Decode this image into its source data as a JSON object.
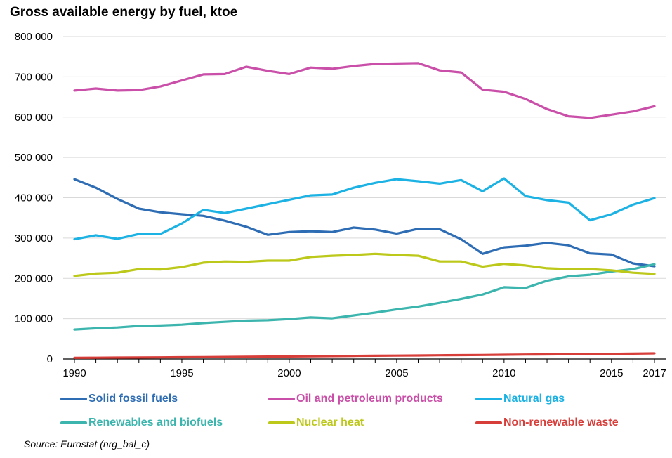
{
  "chart_data": {
    "type": "line",
    "title": "Gross available energy by fuel, ktoe",
    "xlabel": "",
    "ylabel": "",
    "ylim": [
      0,
      800000
    ],
    "yticks": [
      0,
      100000,
      200000,
      300000,
      400000,
      500000,
      600000,
      700000,
      800000
    ],
    "ytick_labels": [
      "0",
      "100 000",
      "200 000",
      "300 000",
      "400 000",
      "500 000",
      "600 000",
      "700 000",
      "800 000"
    ],
    "xlim": [
      1990,
      2017
    ],
    "xticks": [
      1990,
      1995,
      2000,
      2005,
      2010,
      2015,
      2017
    ],
    "xtick_labels": [
      "1990",
      "1995",
      "2000",
      "2005",
      "2010",
      "2015",
      "2017"
    ],
    "grid": "horizontal",
    "legend_position": "bottom",
    "x": [
      1990,
      1991,
      1992,
      1993,
      1994,
      1995,
      1996,
      1997,
      1998,
      1999,
      2000,
      2001,
      2002,
      2003,
      2004,
      2005,
      2006,
      2007,
      2008,
      2009,
      2010,
      2011,
      2012,
      2013,
      2014,
      2015,
      2016,
      2017
    ],
    "series": [
      {
        "name": "Solid fossil fuels",
        "color": "#2e6db4",
        "values": [
          446000,
          425000,
          397000,
          373000,
          364000,
          359000,
          355000,
          343000,
          328000,
          308000,
          315000,
          317000,
          315000,
          326000,
          321000,
          311000,
          323000,
          322000,
          297000,
          261000,
          277000,
          281000,
          288000,
          282000,
          262000,
          259000,
          237000,
          230000
        ]
      },
      {
        "name": "Oil and petroleum products",
        "color": "#c94fa8",
        "values": [
          666000,
          671000,
          666000,
          667000,
          676000,
          691000,
          706000,
          707000,
          725000,
          715000,
          707000,
          723000,
          720000,
          727000,
          732000,
          733000,
          734000,
          716000,
          711000,
          668000,
          663000,
          645000,
          620000,
          602000,
          598000,
          606000,
          614000,
          627000
        ]
      },
      {
        "name": "Natural gas",
        "color": "#1cb2e3",
        "values": [
          297000,
          307000,
          298000,
          310000,
          310000,
          336000,
          370000,
          362000,
          373000,
          384000,
          395000,
          406000,
          408000,
          425000,
          437000,
          446000,
          441000,
          435000,
          444000,
          416000,
          448000,
          404000,
          394000,
          388000,
          344000,
          359000,
          383000,
          399000
        ]
      },
      {
        "name": "Renewables and biofuels",
        "color": "#3bb5ad",
        "values": [
          73000,
          76000,
          78000,
          82000,
          83000,
          85000,
          89000,
          92000,
          95000,
          96000,
          99000,
          103000,
          101000,
          108000,
          115000,
          123000,
          130000,
          139000,
          149000,
          160000,
          178000,
          176000,
          194000,
          205000,
          209000,
          217000,
          223000,
          235000
        ]
      },
      {
        "name": "Nuclear heat",
        "color": "#bcc81a",
        "values": [
          206000,
          212000,
          214000,
          223000,
          222000,
          228000,
          239000,
          242000,
          241000,
          244000,
          244000,
          253000,
          256000,
          258000,
          261000,
          258000,
          256000,
          242000,
          242000,
          229000,
          236000,
          232000,
          225000,
          223000,
          223000,
          220000,
          214000,
          211000
        ]
      },
      {
        "name": "Non-renewable waste",
        "color": "#d73e3a",
        "values": [
          3000,
          3200,
          3400,
          3700,
          4000,
          4300,
          4700,
          5100,
          5500,
          5900,
          6300,
          6800,
          7200,
          7600,
          8000,
          8400,
          8800,
          9200,
          9600,
          10000,
          10400,
          10900,
          11300,
          11700,
          12200,
          12700,
          13300,
          14000
        ]
      }
    ]
  },
  "source": "Source: Eurostat (nrg_bal_c)"
}
